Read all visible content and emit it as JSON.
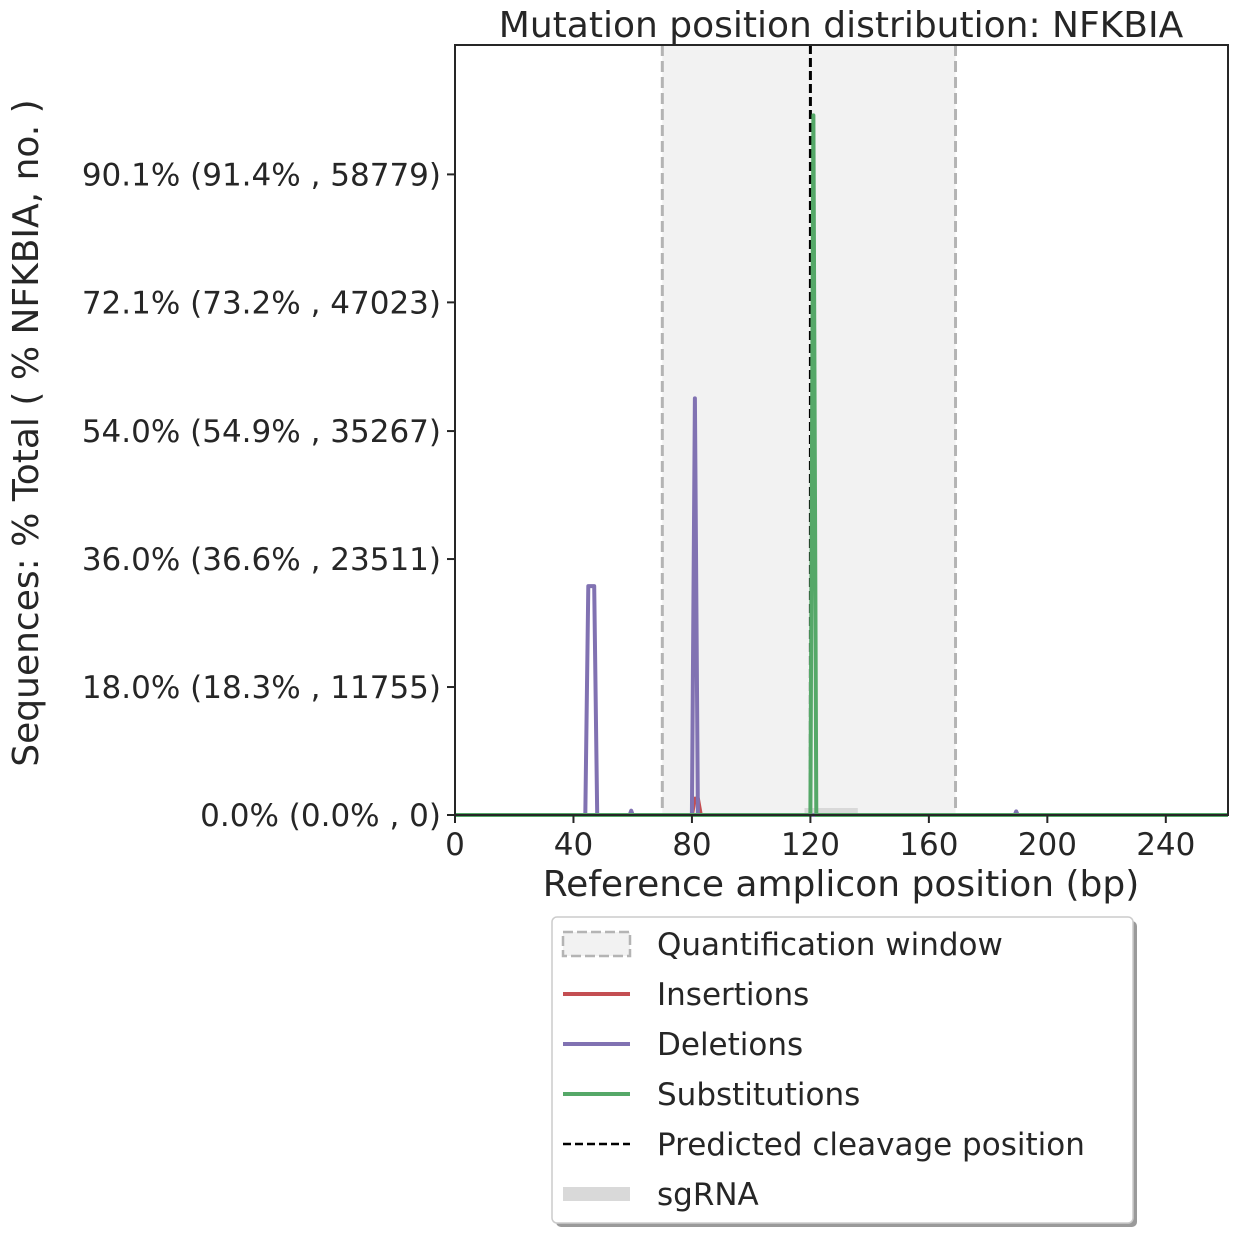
{
  "chart_data": {
    "type": "line",
    "title": "Mutation position distribution: NFKBIA",
    "xlabel": "Reference amplicon position (bp)",
    "ylabel": "Sequences: % Total ( % NFKBIA, no. )",
    "xlim": [
      0,
      261
    ],
    "ylim": [
      0,
      108.3
    ],
    "x_ticks": [
      0,
      40,
      80,
      120,
      160,
      200,
      240
    ],
    "y_ticks": [
      {
        "value": 0.0,
        "label": "0.0% (0.0% , 0)"
      },
      {
        "value": 18.0,
        "label": "18.0% (18.3% , 11755)"
      },
      {
        "value": 36.0,
        "label": "36.0% (36.6% , 23511)"
      },
      {
        "value": 54.0,
        "label": "54.0% (54.9% , 35267)"
      },
      {
        "value": 72.1,
        "label": "72.1% (73.2% , 47023)"
      },
      {
        "value": 90.1,
        "label": "90.1% (91.4% , 58779)"
      }
    ],
    "quantification_window": [
      70,
      169
    ],
    "cleavage_position": 120,
    "sgrna": [
      118,
      136
    ],
    "grid": false,
    "legend_position": "below",
    "series": [
      {
        "name": "Insertions",
        "color": "#c44e52",
        "points": [
          [
            0,
            0
          ],
          [
            80,
            0
          ],
          [
            81,
            2.3
          ],
          [
            82,
            2.3
          ],
          [
            83,
            0
          ],
          [
            261,
            0
          ]
        ]
      },
      {
        "name": "Deletions",
        "color": "#8172b2",
        "points": [
          [
            0,
            0
          ],
          [
            44,
            0
          ],
          [
            45,
            32.2
          ],
          [
            47,
            32.2
          ],
          [
            48,
            0
          ],
          [
            59,
            0
          ],
          [
            59.5,
            0.6
          ],
          [
            60,
            0
          ],
          [
            80,
            0
          ],
          [
            81,
            58.6
          ],
          [
            82,
            0
          ],
          [
            189,
            0
          ],
          [
            189.5,
            0.5
          ],
          [
            190,
            0
          ],
          [
            261,
            0
          ]
        ]
      },
      {
        "name": "Substitutions",
        "color": "#55a868",
        "points": [
          [
            0,
            0
          ],
          [
            120,
            0
          ],
          [
            121,
            98.4
          ],
          [
            122,
            0
          ],
          [
            261,
            0
          ]
        ]
      }
    ],
    "legend": [
      {
        "label": "Quantification window",
        "kind": "window"
      },
      {
        "label": "Insertions",
        "kind": "line",
        "color": "#c44e52"
      },
      {
        "label": "Deletions",
        "kind": "line",
        "color": "#8172b2"
      },
      {
        "label": "Substitutions",
        "kind": "line",
        "color": "#55a868"
      },
      {
        "label": "Predicted cleavage position",
        "kind": "dashed",
        "color": "#000000"
      },
      {
        "label": "sgRNA",
        "kind": "bar",
        "color": "#d9d9d9"
      }
    ]
  }
}
